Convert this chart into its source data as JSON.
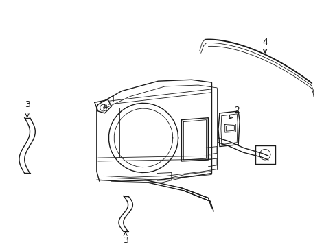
{
  "background_color": "#ffffff",
  "line_color": "#1a1a1a",
  "figsize": [
    4.89,
    3.6
  ],
  "dpi": 100,
  "lw_main": 1.0,
  "lw_thin": 0.6,
  "lw_thick": 1.4
}
